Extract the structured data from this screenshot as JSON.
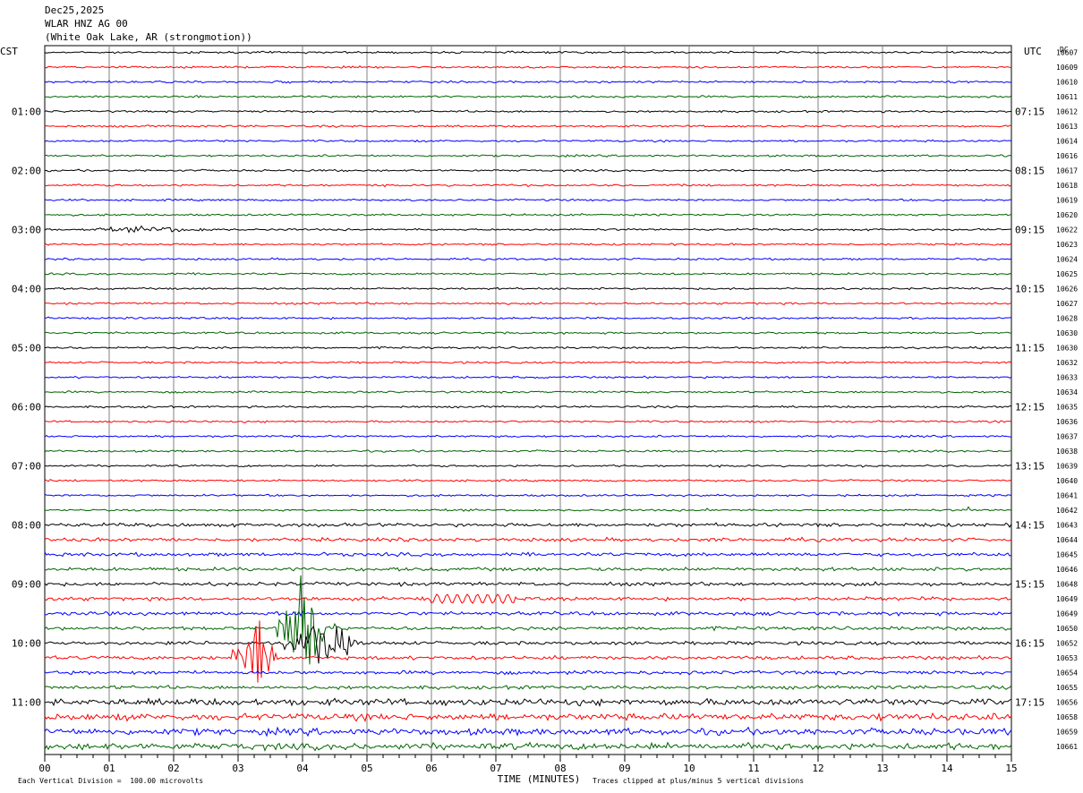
{
  "header": {
    "date": "Dec25,2025",
    "station": "WLAR HNZ AG 00",
    "location": "(White Oak Lake, AR (strongmotion))"
  },
  "labels": {
    "left_tz": "CST",
    "right_tz": "UTC",
    "dc_label": "DC"
  },
  "footer": {
    "scale_note": "Each Vertical Division =  100.00 microvolts",
    "clip_note": "Traces clipped at plus/minus 5 vertical divisions"
  },
  "colors": {
    "trace_cycle": [
      "#000000",
      "#ff0000",
      "#0000ff",
      "#006400"
    ],
    "grid": "#808080"
  },
  "chart_data": {
    "type": "line",
    "title": "",
    "xlabel": "TIME (MINUTES)",
    "ylabel": "",
    "x_ticks": [
      "00",
      "01",
      "02",
      "03",
      "04",
      "05",
      "06",
      "07",
      "08",
      "09",
      "10",
      "11",
      "12",
      "13",
      "14",
      "15"
    ],
    "xlim": [
      0,
      15
    ],
    "grid": true,
    "left_time_labels": [
      "01:00",
      "02:00",
      "03:00",
      "04:00",
      "05:00",
      "06:00",
      "07:00",
      "08:00",
      "09:00",
      "10:00",
      "11:00"
    ],
    "right_time_labels": [
      "07:15",
      "08:15",
      "09:15",
      "10:15",
      "11:15",
      "12:15",
      "13:15",
      "14:15",
      "15:15",
      "16:15",
      "17:15"
    ],
    "dc_offsets": [
      "10607",
      "10609",
      "10610",
      "10611",
      "10612",
      "10613",
      "10614",
      "10616",
      "10617",
      "10618",
      "10619",
      "10620",
      "10622",
      "10623",
      "10624",
      "10625",
      "10626",
      "10627",
      "10628",
      "10630",
      "10630",
      "10632",
      "10633",
      "10634",
      "10635",
      "10636",
      "10637",
      "10638",
      "10639",
      "10640",
      "10641",
      "10642",
      "10643",
      "10644",
      "10645",
      "10646",
      "10648",
      "10649",
      "10649",
      "10650",
      "10652",
      "10653",
      "10654",
      "10655",
      "10656",
      "10658",
      "10659",
      "10661"
    ],
    "trace_count": 48,
    "notes": "Helicorder record, 15 minutes per trace line; notable seismic event near 09:45-10:15 CST at minutes 3-4.5"
  }
}
